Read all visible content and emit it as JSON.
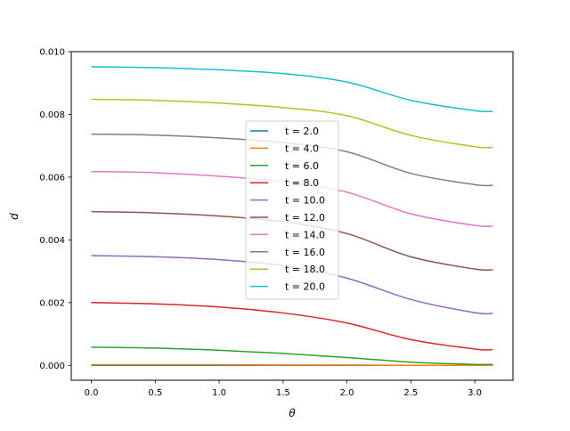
{
  "chart_data": {
    "type": "line",
    "title": "",
    "xlabel": "θ",
    "ylabel": "d",
    "xlim": [
      -0.157,
      3.299
    ],
    "ylim": [
      -0.000475,
      0.01
    ],
    "xticks": [
      0.0,
      0.5,
      1.0,
      1.5,
      2.0,
      2.5,
      3.0
    ],
    "xtick_labels": [
      "0.0",
      "0.5",
      "1.0",
      "1.5",
      "2.0",
      "2.5",
      "3.0"
    ],
    "yticks": [
      0.0,
      0.002,
      0.004,
      0.006,
      0.008,
      0.01
    ],
    "ytick_labels": [
      "0.000",
      "0.002",
      "0.004",
      "0.006",
      "0.008",
      "0.010"
    ],
    "grid": false,
    "legend_position": "center",
    "x": [
      0.0,
      0.5,
      1.0,
      1.5,
      2.0,
      2.5,
      3.0,
      3.1416
    ],
    "series": [
      {
        "name": "t = 2.0",
        "color": "#1f77b4",
        "values": [
          0.0,
          0.0,
          0.0,
          0.0,
          0.0,
          0.0,
          0.0,
          0.0
        ]
      },
      {
        "name": "t = 4.0",
        "color": "#ff7f0e",
        "values": [
          2e-05,
          2e-05,
          2e-05,
          1e-05,
          1e-05,
          0.0,
          0.0,
          0.0
        ]
      },
      {
        "name": "t = 6.0",
        "color": "#2ca02c",
        "values": [
          0.00058,
          0.00055,
          0.00048,
          0.00038,
          0.00025,
          0.0001,
          3e-05,
          3e-05
        ]
      },
      {
        "name": "t = 8.0",
        "color": "#d62728",
        "values": [
          0.002,
          0.00196,
          0.00186,
          0.00167,
          0.00135,
          0.00082,
          0.00052,
          0.0005
        ]
      },
      {
        "name": "t = 10.0",
        "color": "#9467bd",
        "values": [
          0.0035,
          0.00346,
          0.00337,
          0.00318,
          0.00278,
          0.0021,
          0.00168,
          0.00166
        ]
      },
      {
        "name": "t = 12.0",
        "color": "#8c564b",
        "values": [
          0.0049,
          0.00486,
          0.00476,
          0.00458,
          0.0042,
          0.00346,
          0.00307,
          0.00305
        ]
      },
      {
        "name": "t = 14.0",
        "color": "#e377c2",
        "values": [
          0.00618,
          0.00614,
          0.00603,
          0.00586,
          0.00552,
          0.00483,
          0.00446,
          0.00444
        ]
      },
      {
        "name": "t = 16.0",
        "color": "#7f7f7f",
        "values": [
          0.00737,
          0.00734,
          0.00725,
          0.0071,
          0.00681,
          0.00612,
          0.00576,
          0.00574
        ]
      },
      {
        "name": "t = 18.0",
        "color": "#bcbd22",
        "values": [
          0.00848,
          0.00845,
          0.00836,
          0.00822,
          0.00796,
          0.00733,
          0.00697,
          0.00695
        ]
      },
      {
        "name": "t = 20.0",
        "color": "#17becf",
        "values": [
          0.00952,
          0.00949,
          0.00942,
          0.0093,
          0.00903,
          0.00845,
          0.00812,
          0.0081
        ]
      }
    ]
  }
}
